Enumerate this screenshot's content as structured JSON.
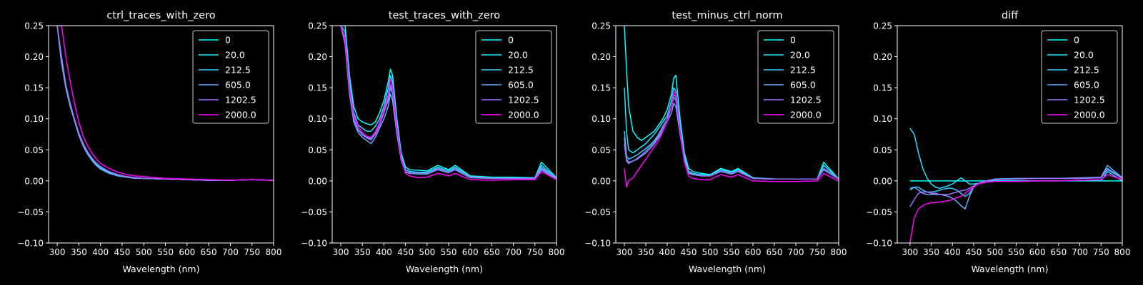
{
  "colors": {
    "background": "#000000",
    "axis": "#ffffff",
    "series": [
      "#00ffff",
      "#1ae5ff",
      "#33ccff",
      "#66aaff",
      "#a070ff",
      "#ff00ff"
    ]
  },
  "chart_data": [
    {
      "type": "line",
      "title": "ctrl_traces_with_zero",
      "xlabel": "Wavelength (nm)",
      "ylabel": "",
      "xlim": [
        280,
        800
      ],
      "ylim": [
        -0.1,
        0.25
      ],
      "xticks": [
        300,
        350,
        400,
        450,
        500,
        550,
        600,
        650,
        700,
        750,
        800
      ],
      "yticks": [
        -0.1,
        -0.05,
        0.0,
        0.05,
        0.1,
        0.15,
        0.2,
        0.25
      ],
      "ytick_labels": [
        "−0.10",
        "−0.05",
        "0.00",
        "0.05",
        "0.10",
        "0.15",
        "0.20",
        "0.25"
      ],
      "legend_position": "top-right",
      "x": [
        300,
        310,
        320,
        330,
        340,
        350,
        360,
        370,
        380,
        390,
        400,
        420,
        440,
        460,
        480,
        500,
        550,
        600,
        650,
        700,
        750,
        800
      ],
      "series": [
        {
          "name": "0",
          "values": [
            0.25,
            0.19,
            0.15,
            0.12,
            0.098,
            0.075,
            0.058,
            0.045,
            0.035,
            0.027,
            0.021,
            0.014,
            0.009,
            0.007,
            0.005,
            0.004,
            0.003,
            0.002,
            0.001,
            0.001,
            0.002,
            0.001
          ]
        },
        {
          "name": "20.0",
          "values": [
            0.25,
            0.19,
            0.15,
            0.12,
            0.097,
            0.074,
            0.057,
            0.044,
            0.034,
            0.026,
            0.02,
            0.013,
            0.008,
            0.006,
            0.005,
            0.004,
            0.003,
            0.002,
            0.001,
            0.001,
            0.002,
            0.001
          ]
        },
        {
          "name": "212.5",
          "values": [
            0.25,
            0.19,
            0.15,
            0.12,
            0.098,
            0.076,
            0.059,
            0.046,
            0.036,
            0.028,
            0.022,
            0.015,
            0.01,
            0.007,
            0.005,
            0.004,
            0.003,
            0.002,
            0.001,
            0.001,
            0.002,
            0.001
          ]
        },
        {
          "name": "605.0",
          "values": [
            0.25,
            0.19,
            0.15,
            0.12,
            0.097,
            0.073,
            0.056,
            0.043,
            0.033,
            0.025,
            0.019,
            0.012,
            0.008,
            0.006,
            0.004,
            0.004,
            0.003,
            0.002,
            0.001,
            0.001,
            0.002,
            0.001
          ]
        },
        {
          "name": "1202.5",
          "values": [
            0.25,
            0.2,
            0.155,
            0.125,
            0.1,
            0.077,
            0.06,
            0.047,
            0.037,
            0.029,
            0.023,
            0.015,
            0.01,
            0.007,
            0.005,
            0.004,
            0.003,
            0.002,
            0.001,
            0.001,
            0.002,
            0.001
          ]
        },
        {
          "name": "2000.0",
          "values": [
            0.25,
            0.25,
            0.2,
            0.16,
            0.125,
            0.095,
            0.072,
            0.057,
            0.045,
            0.036,
            0.028,
            0.02,
            0.014,
            0.01,
            0.008,
            0.007,
            0.004,
            0.003,
            0.002,
            0.001,
            0.002,
            0.001
          ]
        }
      ]
    },
    {
      "type": "line",
      "title": "test_traces_with_zero",
      "xlabel": "Wavelength (nm)",
      "ylabel": "",
      "xlim": [
        280,
        800
      ],
      "ylim": [
        -0.1,
        0.25
      ],
      "xticks": [
        300,
        350,
        400,
        450,
        500,
        550,
        600,
        650,
        700,
        750,
        800
      ],
      "yticks": [
        -0.1,
        -0.05,
        0.0,
        0.05,
        0.1,
        0.15,
        0.2,
        0.25
      ],
      "ytick_labels": [
        "−0.10",
        "−0.05",
        "0.00",
        "0.05",
        "0.10",
        "0.15",
        "0.20",
        "0.25"
      ],
      "legend_position": "top-right",
      "x": [
        300,
        310,
        320,
        330,
        340,
        350,
        360,
        370,
        380,
        390,
        400,
        410,
        415,
        420,
        430,
        440,
        450,
        460,
        480,
        500,
        525,
        550,
        565,
        600,
        650,
        700,
        750,
        765,
        800
      ],
      "series": [
        {
          "name": "0",
          "values": [
            0.25,
            0.25,
            0.17,
            0.12,
            0.1,
            0.095,
            0.092,
            0.09,
            0.095,
            0.11,
            0.13,
            0.16,
            0.18,
            0.17,
            0.1,
            0.045,
            0.022,
            0.018,
            0.017,
            0.016,
            0.025,
            0.018,
            0.025,
            0.008,
            0.006,
            0.006,
            0.005,
            0.03,
            0.005
          ]
        },
        {
          "name": "20.0",
          "values": [
            0.25,
            0.24,
            0.16,
            0.11,
            0.09,
            0.085,
            0.08,
            0.08,
            0.088,
            0.1,
            0.12,
            0.15,
            0.17,
            0.16,
            0.09,
            0.04,
            0.018,
            0.015,
            0.014,
            0.014,
            0.022,
            0.016,
            0.022,
            0.007,
            0.005,
            0.005,
            0.004,
            0.025,
            0.004
          ]
        },
        {
          "name": "212.5",
          "values": [
            0.25,
            0.23,
            0.15,
            0.1,
            0.083,
            0.075,
            0.07,
            0.068,
            0.078,
            0.09,
            0.11,
            0.13,
            0.15,
            0.14,
            0.08,
            0.035,
            0.015,
            0.013,
            0.012,
            0.012,
            0.02,
            0.014,
            0.02,
            0.006,
            0.004,
            0.004,
            0.004,
            0.02,
            0.004
          ]
        },
        {
          "name": "605.0",
          "values": [
            0.25,
            0.22,
            0.14,
            0.095,
            0.078,
            0.07,
            0.065,
            0.06,
            0.07,
            0.085,
            0.1,
            0.12,
            0.14,
            0.13,
            0.075,
            0.033,
            0.014,
            0.012,
            0.011,
            0.011,
            0.018,
            0.013,
            0.018,
            0.005,
            0.004,
            0.004,
            0.003,
            0.018,
            0.003
          ]
        },
        {
          "name": "1202.5",
          "values": [
            0.25,
            0.22,
            0.145,
            0.1,
            0.082,
            0.074,
            0.069,
            0.066,
            0.075,
            0.09,
            0.11,
            0.135,
            0.155,
            0.145,
            0.08,
            0.035,
            0.015,
            0.013,
            0.012,
            0.012,
            0.02,
            0.014,
            0.02,
            0.006,
            0.004,
            0.004,
            0.004,
            0.022,
            0.004
          ]
        },
        {
          "name": "2000.0",
          "values": [
            0.25,
            0.23,
            0.15,
            0.105,
            0.088,
            0.078,
            0.072,
            0.07,
            0.079,
            0.094,
            0.115,
            0.14,
            0.165,
            0.15,
            0.085,
            0.037,
            0.012,
            0.008,
            0.005,
            0.006,
            0.012,
            0.008,
            0.012,
            0.002,
            0.001,
            0.002,
            0.002,
            0.015,
            0.002
          ]
        }
      ]
    },
    {
      "type": "line",
      "title": "test_minus_ctrl_norm",
      "xlabel": "Wavelength (nm)",
      "ylabel": "",
      "xlim": [
        280,
        800
      ],
      "ylim": [
        -0.1,
        0.25
      ],
      "xticks": [
        300,
        350,
        400,
        450,
        500,
        550,
        600,
        650,
        700,
        750,
        800
      ],
      "yticks": [
        -0.1,
        -0.05,
        0.0,
        0.05,
        0.1,
        0.15,
        0.2,
        0.25
      ],
      "ytick_labels": [
        "−0.10",
        "−0.05",
        "0.00",
        "0.05",
        "0.10",
        "0.15",
        "0.20",
        "0.25"
      ],
      "legend_position": "top-right",
      "x": [
        300,
        305,
        310,
        320,
        330,
        340,
        350,
        360,
        370,
        380,
        390,
        400,
        410,
        415,
        420,
        430,
        440,
        450,
        460,
        480,
        500,
        525,
        550,
        565,
        600,
        650,
        700,
        750,
        765,
        800
      ],
      "series": [
        {
          "name": "0",
          "values": [
            0.25,
            0.18,
            0.12,
            0.08,
            0.07,
            0.065,
            0.07,
            0.075,
            0.08,
            0.09,
            0.1,
            0.115,
            0.14,
            0.165,
            0.17,
            0.1,
            0.045,
            0.02,
            0.015,
            0.012,
            0.01,
            0.02,
            0.015,
            0.02,
            0.005,
            0.003,
            0.003,
            0.003,
            0.03,
            0.003
          ]
        },
        {
          "name": "20.0",
          "values": [
            0.15,
            0.08,
            0.05,
            0.045,
            0.05,
            0.055,
            0.06,
            0.068,
            0.075,
            0.085,
            0.095,
            0.105,
            0.13,
            0.15,
            0.145,
            0.09,
            0.04,
            0.015,
            0.012,
            0.01,
            0.009,
            0.018,
            0.014,
            0.018,
            0.004,
            0.003,
            0.003,
            0.003,
            0.025,
            0.003
          ]
        },
        {
          "name": "212.5",
          "values": [
            0.08,
            0.04,
            0.035,
            0.038,
            0.042,
            0.047,
            0.052,
            0.058,
            0.065,
            0.075,
            0.088,
            0.1,
            0.12,
            0.135,
            0.13,
            0.08,
            0.035,
            0.013,
            0.011,
            0.009,
            0.008,
            0.016,
            0.012,
            0.016,
            0.004,
            0.003,
            0.003,
            0.003,
            0.02,
            0.003
          ]
        },
        {
          "name": "605.0",
          "values": [
            0.07,
            0.035,
            0.03,
            0.032,
            0.035,
            0.04,
            0.045,
            0.052,
            0.06,
            0.07,
            0.082,
            0.095,
            0.11,
            0.125,
            0.12,
            0.075,
            0.032,
            0.012,
            0.01,
            0.008,
            0.008,
            0.015,
            0.011,
            0.015,
            0.004,
            0.003,
            0.003,
            0.003,
            0.018,
            0.003
          ]
        },
        {
          "name": "1202.5",
          "values": [
            0.06,
            0.032,
            0.028,
            0.032,
            0.036,
            0.042,
            0.048,
            0.055,
            0.062,
            0.073,
            0.086,
            0.1,
            0.12,
            0.14,
            0.135,
            0.08,
            0.034,
            0.012,
            0.01,
            0.008,
            0.008,
            0.016,
            0.012,
            0.016,
            0.004,
            0.003,
            0.003,
            0.003,
            0.02,
            0.003
          ]
        },
        {
          "name": "2000.0",
          "values": [
            0.02,
            -0.01,
            0.0,
            0.005,
            0.015,
            0.025,
            0.035,
            0.045,
            0.055,
            0.065,
            0.08,
            0.095,
            0.12,
            0.145,
            0.14,
            0.08,
            0.03,
            0.008,
            0.004,
            0.002,
            0.002,
            0.01,
            0.006,
            0.01,
            0.0,
            -0.001,
            -0.001,
            0.0,
            0.012,
            0.0
          ]
        }
      ]
    },
    {
      "type": "line",
      "title": "diff",
      "xlabel": "Wavelength (nm)",
      "ylabel": "",
      "xlim": [
        270,
        800
      ],
      "ylim": [
        -0.1,
        0.25
      ],
      "xticks": [
        300,
        350,
        400,
        450,
        500,
        550,
        600,
        650,
        700,
        750,
        800
      ],
      "yticks": [
        -0.1,
        -0.05,
        0.0,
        0.05,
        0.1,
        0.15,
        0.2,
        0.25
      ],
      "ytick_labels": [
        "−0.10",
        "−0.05",
        "0.00",
        "0.05",
        "0.10",
        "0.15",
        "0.20",
        "0.25"
      ],
      "legend_position": "top-right",
      "x": [
        300,
        310,
        320,
        330,
        340,
        350,
        360,
        370,
        380,
        390,
        400,
        410,
        420,
        430,
        440,
        450,
        460,
        480,
        500,
        550,
        600,
        650,
        700,
        750,
        765,
        800
      ],
      "series": [
        {
          "name": "0",
          "values": [
            0,
            0,
            0,
            0,
            0,
            0,
            0,
            0,
            0,
            0,
            0,
            0,
            0,
            0,
            0,
            0,
            0,
            0,
            0,
            0,
            0,
            0,
            0,
            0,
            0,
            0
          ]
        },
        {
          "name": "20.0",
          "values": [
            0.085,
            0.075,
            0.045,
            0.02,
            0.005,
            -0.005,
            -0.01,
            -0.012,
            -0.01,
            -0.008,
            -0.005,
            0.0,
            0.005,
            0.0,
            -0.005,
            -0.005,
            -0.004,
            -0.002,
            -0.001,
            0.0,
            0.0,
            0.0,
            0.001,
            0.0,
            0.015,
            0.0
          ]
        },
        {
          "name": "212.5",
          "values": [
            -0.015,
            -0.01,
            -0.01,
            -0.015,
            -0.018,
            -0.018,
            -0.017,
            -0.015,
            -0.013,
            -0.012,
            -0.012,
            -0.015,
            -0.02,
            -0.025,
            -0.02,
            -0.01,
            -0.005,
            0.0,
            0.002,
            0.003,
            0.004,
            0.004,
            0.004,
            0.005,
            0.02,
            0.005
          ]
        },
        {
          "name": "605.0",
          "values": [
            -0.012,
            -0.01,
            -0.015,
            -0.02,
            -0.022,
            -0.022,
            -0.022,
            -0.022,
            -0.023,
            -0.025,
            -0.028,
            -0.033,
            -0.04,
            -0.045,
            -0.025,
            -0.01,
            -0.005,
            0.0,
            0.003,
            0.004,
            0.004,
            0.004,
            0.005,
            0.006,
            0.025,
            0.005
          ]
        },
        {
          "name": "1202.5",
          "values": [
            -0.042,
            -0.03,
            -0.02,
            -0.018,
            -0.018,
            -0.02,
            -0.02,
            -0.022,
            -0.022,
            -0.022,
            -0.02,
            -0.018,
            -0.016,
            -0.015,
            -0.012,
            -0.008,
            -0.004,
            0.0,
            0.002,
            0.003,
            0.004,
            0.004,
            0.004,
            0.005,
            0.018,
            0.004
          ]
        },
        {
          "name": "2000.0",
          "values": [
            -0.1,
            -0.06,
            -0.045,
            -0.04,
            -0.037,
            -0.035,
            -0.035,
            -0.034,
            -0.033,
            -0.032,
            -0.03,
            -0.027,
            -0.025,
            -0.02,
            -0.015,
            -0.01,
            -0.005,
            -0.002,
            -0.001,
            -0.001,
            0.0,
            0.0,
            0.001,
            0.002,
            0.01,
            0.002
          ]
        }
      ]
    }
  ]
}
